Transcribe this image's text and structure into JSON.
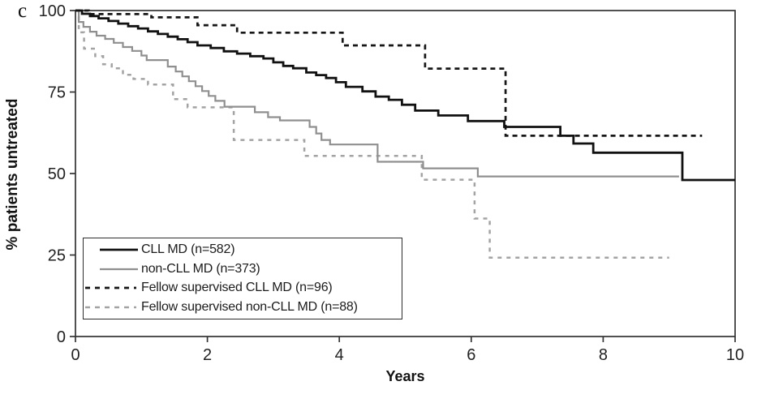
{
  "panel_letter": "c",
  "colors": {
    "background": "#ffffff",
    "axis": "#333333",
    "tick_text": "#222222",
    "title_text": "#131313"
  },
  "chart_data": {
    "type": "line",
    "subtype": "kaplan-meier-step",
    "title": "",
    "xlabel": "Years",
    "ylabel": "% patients untreated",
    "xlim": [
      0,
      10
    ],
    "ylim": [
      0,
      100
    ],
    "x_ticks": [
      0,
      2,
      4,
      6,
      8,
      10
    ],
    "y_ticks": [
      0,
      25,
      50,
      75,
      100
    ],
    "grid": false,
    "frame": true,
    "legend_position": "inside-bottom-left",
    "series": [
      {
        "name": "CLL MD",
        "label": "CLL MD (n=582)",
        "style": "solid",
        "color": "#111111",
        "stroke_width": 2.8,
        "dash": "none",
        "points": [
          [
            0,
            100
          ],
          [
            0.1,
            99.0
          ],
          [
            0.22,
            98.3
          ],
          [
            0.35,
            97.6
          ],
          [
            0.5,
            96.8
          ],
          [
            0.65,
            96.0
          ],
          [
            0.8,
            95.2
          ],
          [
            0.95,
            94.5
          ],
          [
            1.1,
            93.6
          ],
          [
            1.25,
            92.8
          ],
          [
            1.4,
            92.0
          ],
          [
            1.55,
            91.2
          ],
          [
            1.7,
            90.3
          ],
          [
            1.85,
            89.3
          ],
          [
            2.05,
            88.5
          ],
          [
            2.25,
            87.5
          ],
          [
            2.45,
            86.8
          ],
          [
            2.65,
            86.0
          ],
          [
            2.85,
            85.3
          ],
          [
            3.0,
            84.1
          ],
          [
            3.15,
            83.0
          ],
          [
            3.3,
            82.3
          ],
          [
            3.5,
            81.0
          ],
          [
            3.65,
            80.2
          ],
          [
            3.8,
            79.3
          ],
          [
            3.95,
            78.0
          ],
          [
            4.1,
            76.6
          ],
          [
            4.35,
            75.2
          ],
          [
            4.55,
            73.6
          ],
          [
            4.75,
            72.6
          ],
          [
            4.95,
            71.1
          ],
          [
            5.15,
            69.3
          ],
          [
            5.5,
            67.8
          ],
          [
            5.95,
            66.1
          ],
          [
            6.5,
            64.3
          ],
          [
            7.35,
            61.6
          ],
          [
            7.55,
            59.2
          ],
          [
            7.85,
            56.4
          ],
          [
            9.2,
            48.0
          ],
          [
            10,
            48.0
          ]
        ]
      },
      {
        "name": "non-CLL MD",
        "label": "non-CLL MD (n=373)",
        "style": "solid",
        "color": "#8f8f8f",
        "stroke_width": 2.2,
        "dash": "none",
        "points": [
          [
            0,
            100
          ],
          [
            0.05,
            96.5
          ],
          [
            0.12,
            95.0
          ],
          [
            0.22,
            93.5
          ],
          [
            0.32,
            92.3
          ],
          [
            0.45,
            91.3
          ],
          [
            0.58,
            90.1
          ],
          [
            0.72,
            88.8
          ],
          [
            0.86,
            87.6
          ],
          [
            1.0,
            86.2
          ],
          [
            1.08,
            84.8
          ],
          [
            1.4,
            82.8
          ],
          [
            1.52,
            81.3
          ],
          [
            1.62,
            79.8
          ],
          [
            1.72,
            78.3
          ],
          [
            1.82,
            76.8
          ],
          [
            1.92,
            75.3
          ],
          [
            2.02,
            73.8
          ],
          [
            2.12,
            72.3
          ],
          [
            2.26,
            70.5
          ],
          [
            2.72,
            68.8
          ],
          [
            2.92,
            67.3
          ],
          [
            3.1,
            66.3
          ],
          [
            3.55,
            64.3
          ],
          [
            3.65,
            62.3
          ],
          [
            3.73,
            60.3
          ],
          [
            3.86,
            58.9
          ],
          [
            4.58,
            53.6
          ],
          [
            5.27,
            51.6
          ],
          [
            6.1,
            49.1
          ],
          [
            9.15,
            49.1
          ]
        ]
      },
      {
        "name": "Fellow supervised CLL MD",
        "label": "Fellow supervised CLL MD (n=96)",
        "style": "dashed",
        "color": "#161616",
        "stroke_width": 2.7,
        "dash": "6 5",
        "points": [
          [
            0,
            100
          ],
          [
            0.2,
            98.9
          ],
          [
            1.15,
            97.9
          ],
          [
            1.85,
            95.5
          ],
          [
            2.45,
            93.2
          ],
          [
            4.05,
            89.3
          ],
          [
            5.3,
            82.2
          ],
          [
            6.52,
            61.6
          ],
          [
            9.5,
            61.6
          ]
        ]
      },
      {
        "name": "Fellow supervised non-CLL MD",
        "label": "Fellow supervised non-CLL MD (n=88)",
        "style": "dashed",
        "color": "#a3a3a3",
        "stroke_width": 2.5,
        "dash": "5 6",
        "points": [
          [
            0,
            100
          ],
          [
            0.05,
            93.3
          ],
          [
            0.13,
            88.3
          ],
          [
            0.3,
            86.0
          ],
          [
            0.42,
            83.5
          ],
          [
            0.55,
            82.3
          ],
          [
            0.72,
            80.3
          ],
          [
            0.88,
            79.0
          ],
          [
            1.1,
            77.3
          ],
          [
            1.48,
            72.8
          ],
          [
            1.7,
            70.3
          ],
          [
            2.4,
            60.3
          ],
          [
            3.47,
            55.4
          ],
          [
            5.25,
            48.1
          ],
          [
            6.05,
            36.2
          ],
          [
            6.28,
            24.2
          ],
          [
            9.0,
            24.2
          ]
        ]
      }
    ]
  }
}
